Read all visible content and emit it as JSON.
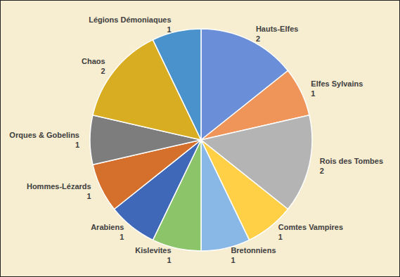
{
  "chart_data": {
    "type": "pie",
    "categories": [
      "Hauts-Elfes",
      "Elfes Sylvains",
      "Rois des Tombes",
      "Comtes Vampires",
      "Bretonniens",
      "Kislevites",
      "Arabiens",
      "Hommes-Lézards",
      "Orques & Gobelins",
      "Chaos",
      "Légions Démoniaques"
    ],
    "values": [
      2,
      1,
      2,
      1,
      1,
      1,
      1,
      1,
      1,
      2,
      1
    ],
    "colors": [
      "#6a8fd8",
      "#f0955a",
      "#b4b4b4",
      "#ffcf45",
      "#8ab8e6",
      "#8cc46a",
      "#4068b8",
      "#d56f2c",
      "#7d7d7d",
      "#d9ad22",
      "#4a92cc"
    ],
    "data_labels": true
  }
}
